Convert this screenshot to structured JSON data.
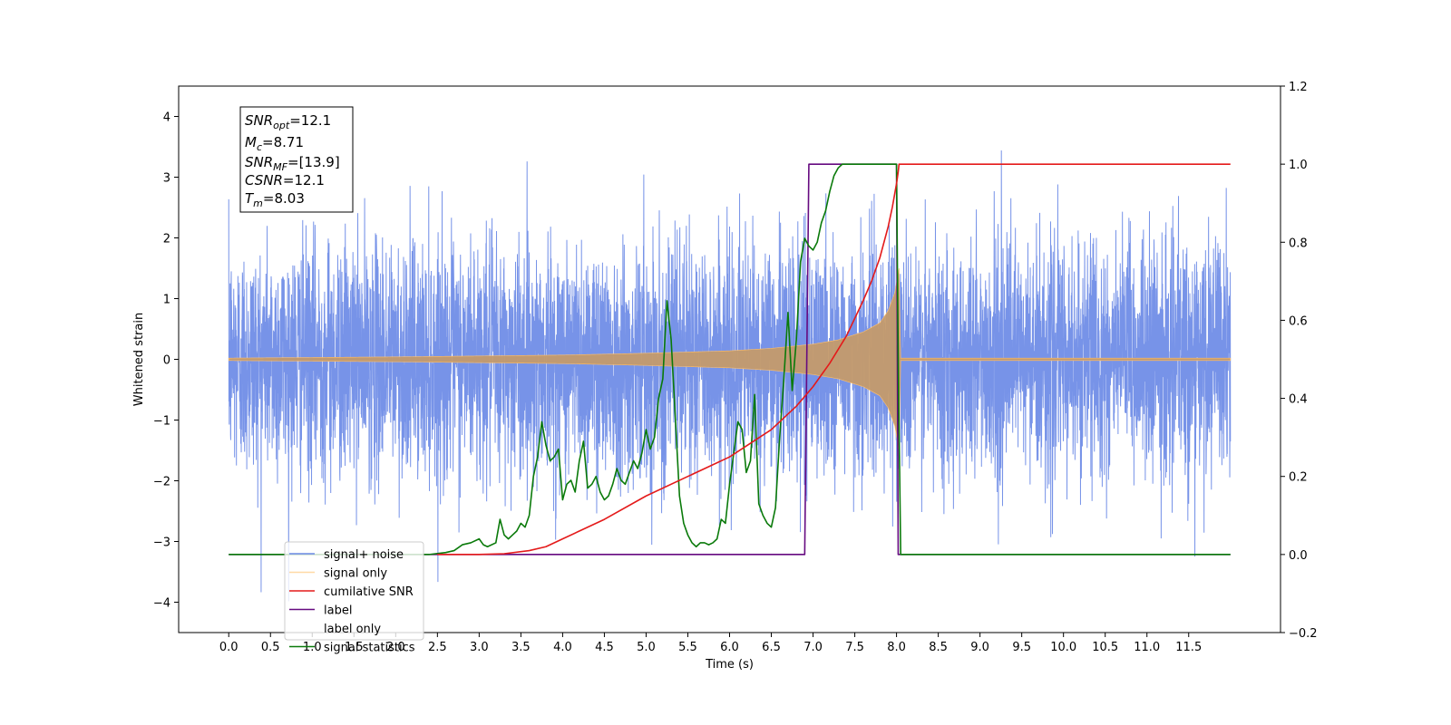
{
  "chart_data": {
    "type": "line",
    "xlabel": "Time (s)",
    "ylabel": "Whitened strain",
    "xlim": [
      -0.6,
      12.6
    ],
    "ylim_left": [
      -4.5,
      4.5
    ],
    "ylim_right": [
      -0.2,
      1.2
    ],
    "x_ticks": [
      0.0,
      0.5,
      1.0,
      1.5,
      2.0,
      2.5,
      3.0,
      3.5,
      4.0,
      4.5,
      5.0,
      5.5,
      6.0,
      6.5,
      7.0,
      7.5,
      8.0,
      8.5,
      9.0,
      9.5,
      10.0,
      10.5,
      11.0,
      11.5
    ],
    "x_tick_labels": [
      "0.0",
      "0.5",
      "1.0",
      "1.5",
      "2.0",
      "2.5",
      "3.0",
      "3.5",
      "4.0",
      "4.5",
      "5.0",
      "5.5",
      "6.0",
      "6.5",
      "7.0",
      "7.5",
      "8.0",
      "8.5",
      "9.0",
      "9.5",
      "10.0",
      "10.5",
      "11.0",
      "11.5"
    ],
    "y_left_ticks": [
      -4,
      -3,
      -2,
      -1,
      0,
      1,
      2,
      3,
      4
    ],
    "y_left_tick_labels": [
      "−4",
      "−3",
      "−2",
      "−1",
      "0",
      "1",
      "2",
      "3",
      "4"
    ],
    "y_right_ticks": [
      -0.2,
      0.0,
      0.2,
      0.4,
      0.6,
      0.8,
      1.0,
      1.2
    ],
    "y_right_tick_labels": [
      "−0.2",
      "0.0",
      "0.2",
      "0.4",
      "0.6",
      "0.8",
      "1.0",
      "1.2"
    ],
    "grid": false,
    "legend_position": "bottom-left",
    "annotation": {
      "snr_opt": "12.1",
      "mc": "8.71",
      "snr_mf": "[13.9]",
      "csnr": "12.1",
      "tm": "8.03"
    },
    "series": [
      {
        "name": "signal+ noise",
        "axis": "left",
        "color": "#6b8ae6",
        "description": "whitened noise with band roughly ±2.5 (extremes about ±4), from t=0 to 12"
      },
      {
        "name": "signal only",
        "axis": "left",
        "color": "#ffbf69",
        "envelope": {
          "x": [
            0.0,
            2.0,
            4.0,
            5.0,
            6.0,
            6.5,
            7.0,
            7.3,
            7.6,
            7.8,
            7.9,
            7.98,
            8.03,
            8.05,
            12.0
          ],
          "amp": [
            0.02,
            0.04,
            0.07,
            0.1,
            0.14,
            0.18,
            0.25,
            0.32,
            0.45,
            0.6,
            0.8,
            1.1,
            1.5,
            0.02,
            0.02
          ]
        }
      },
      {
        "name": "cumilative SNR",
        "axis": "right",
        "color": "#e41a1a",
        "x": [
          2.5,
          3.0,
          3.3,
          3.6,
          3.8,
          4.0,
          4.2,
          4.5,
          5.0,
          5.5,
          6.0,
          6.5,
          6.8,
          7.0,
          7.2,
          7.4,
          7.6,
          7.7,
          7.8,
          7.9,
          7.95,
          8.0,
          8.02,
          8.03,
          8.05,
          12.0
        ],
        "values": [
          0.0,
          0.0,
          0.002,
          0.01,
          0.02,
          0.04,
          0.06,
          0.09,
          0.15,
          0.2,
          0.25,
          0.32,
          0.38,
          0.43,
          0.49,
          0.56,
          0.65,
          0.7,
          0.76,
          0.84,
          0.89,
          0.95,
          0.98,
          1.0,
          1.0,
          1.0
        ]
      },
      {
        "name": "label",
        "axis": "right",
        "color": "#660a80",
        "x": [
          0.0,
          6.9,
          6.95,
          8.0,
          8.02,
          8.05,
          12.0
        ],
        "values": [
          0.0,
          0.0,
          1.0,
          1.0,
          0.0,
          0.0,
          0.0
        ]
      },
      {
        "name": "label only",
        "axis": "right",
        "color": "#808080",
        "legend_only": true
      },
      {
        "name": "signal statistics",
        "axis": "right",
        "color": "#0a7a0a",
        "x": [
          0.0,
          2.0,
          2.4,
          2.6,
          2.7,
          2.8,
          2.9,
          3.0,
          3.05,
          3.1,
          3.2,
          3.25,
          3.3,
          3.35,
          3.4,
          3.45,
          3.5,
          3.55,
          3.6,
          3.65,
          3.7,
          3.75,
          3.8,
          3.85,
          3.9,
          3.95,
          4.0,
          4.05,
          4.1,
          4.15,
          4.2,
          4.25,
          4.3,
          4.35,
          4.4,
          4.45,
          4.5,
          4.55,
          4.6,
          4.65,
          4.7,
          4.75,
          4.8,
          4.85,
          4.9,
          4.95,
          5.0,
          5.05,
          5.1,
          5.15,
          5.2,
          5.25,
          5.3,
          5.35,
          5.4,
          5.45,
          5.5,
          5.55,
          5.6,
          5.65,
          5.7,
          5.75,
          5.8,
          5.85,
          5.9,
          5.95,
          6.0,
          6.05,
          6.1,
          6.15,
          6.2,
          6.25,
          6.3,
          6.35,
          6.4,
          6.45,
          6.5,
          6.55,
          6.6,
          6.65,
          6.7,
          6.75,
          6.8,
          6.85,
          6.9,
          6.95,
          7.0,
          7.05,
          7.1,
          7.15,
          7.2,
          7.25,
          7.3,
          7.35,
          7.4,
          7.45,
          7.5,
          7.6,
          7.7,
          7.8,
          7.9,
          8.0,
          8.02,
          8.05,
          8.1,
          12.0
        ],
        "values": [
          0.0,
          0.0,
          0.0,
          0.005,
          0.01,
          0.025,
          0.03,
          0.04,
          0.025,
          0.02,
          0.03,
          0.09,
          0.05,
          0.04,
          0.05,
          0.06,
          0.08,
          0.07,
          0.1,
          0.2,
          0.25,
          0.34,
          0.28,
          0.24,
          0.25,
          0.27,
          0.14,
          0.18,
          0.19,
          0.16,
          0.24,
          0.29,
          0.17,
          0.18,
          0.2,
          0.16,
          0.14,
          0.15,
          0.18,
          0.22,
          0.19,
          0.18,
          0.21,
          0.24,
          0.22,
          0.26,
          0.32,
          0.27,
          0.3,
          0.4,
          0.45,
          0.65,
          0.55,
          0.35,
          0.15,
          0.08,
          0.05,
          0.03,
          0.02,
          0.03,
          0.03,
          0.025,
          0.03,
          0.04,
          0.09,
          0.08,
          0.18,
          0.26,
          0.34,
          0.32,
          0.21,
          0.24,
          0.41,
          0.13,
          0.1,
          0.08,
          0.07,
          0.12,
          0.3,
          0.45,
          0.62,
          0.42,
          0.55,
          0.75,
          0.81,
          0.79,
          0.78,
          0.8,
          0.85,
          0.88,
          0.93,
          0.97,
          0.99,
          1.0,
          1.0,
          1.0,
          1.0,
          1.0,
          1.0,
          1.0,
          1.0,
          1.0,
          0.5,
          0.0,
          0.0,
          0.0
        ]
      }
    ]
  }
}
